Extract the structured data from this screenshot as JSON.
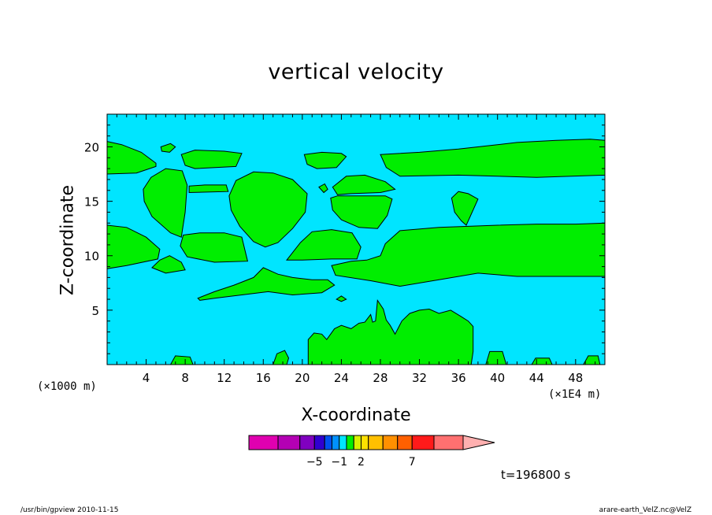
{
  "colors": {
    "background_field": "#00e5ff",
    "positive_field": "#00ee00",
    "contour": "#000000"
  },
  "chart_data": {
    "type": "heatmap",
    "title": "vertical velocity",
    "xlabel": "X-coordinate",
    "ylabel": "Z-coordinate",
    "x_unit_left": "(×1000 m)",
    "x_unit_right": "(×1E4 m)",
    "xlim": [
      0,
      51
    ],
    "ylim": [
      0,
      23
    ],
    "x_ticks": [
      4,
      8,
      12,
      16,
      20,
      24,
      28,
      32,
      36,
      40,
      44,
      48
    ],
    "y_ticks": [
      5,
      10,
      15,
      20
    ],
    "colorbar": {
      "levels": [
        -10,
        -8,
        -6,
        -5,
        -3,
        -2,
        -1,
        0,
        1,
        2,
        3,
        4,
        5,
        7,
        10,
        15,
        20
      ],
      "colors": [
        "#e000b0",
        "#b400b4",
        "#8000c0",
        "#3000d0",
        "#0050f0",
        "#0090ff",
        "#00e5ff",
        "#00ee00",
        "#d8f000",
        "#ffe000",
        "#ffc000",
        "#ff9000",
        "#ff6000",
        "#ff1a1a",
        "#ff7070",
        "#ffb0b0"
      ],
      "labels": [
        {
          "value": -5,
          "text": "−5"
        },
        {
          "value": -1,
          "text": "−1"
        },
        {
          "value": 2,
          "text": "2"
        },
        {
          "value": 7,
          "text": "7"
        }
      ]
    },
    "time_label": "t=196800 s",
    "regions": [
      {
        "name": "upper-band-left",
        "pts": [
          [
            0,
            20.5
          ],
          [
            1.5,
            20.2
          ],
          [
            3.5,
            19.5
          ],
          [
            5,
            18.5
          ],
          [
            5,
            18.2
          ],
          [
            3,
            17.6
          ],
          [
            0,
            17.5
          ]
        ]
      },
      {
        "name": "bubble-x6-z20",
        "pts": [
          [
            5.5,
            20
          ],
          [
            6.5,
            20.3
          ],
          [
            7,
            20
          ],
          [
            6.4,
            19.5
          ],
          [
            5.6,
            19.6
          ]
        ]
      },
      {
        "name": "upper-band-x8-14",
        "pts": [
          [
            7.6,
            19.3
          ],
          [
            9,
            19.7
          ],
          [
            12,
            19.6
          ],
          [
            13.8,
            19.4
          ],
          [
            13.2,
            18.2
          ],
          [
            9,
            18.0
          ],
          [
            8,
            18.3
          ]
        ]
      },
      {
        "name": "upper-band-x20-24",
        "pts": [
          [
            20.2,
            19.3
          ],
          [
            22,
            19.5
          ],
          [
            24,
            19.4
          ],
          [
            24.5,
            19.1
          ],
          [
            23.5,
            18.1
          ],
          [
            21.5,
            18.0
          ],
          [
            20.5,
            18.4
          ]
        ]
      },
      {
        "name": "upper-band-right",
        "pts": [
          [
            28,
            19.3
          ],
          [
            32,
            19.5
          ],
          [
            36,
            19.8
          ],
          [
            38,
            20.0
          ],
          [
            42,
            20.4
          ],
          [
            46,
            20.6
          ],
          [
            49.5,
            20.7
          ],
          [
            51,
            20.6
          ],
          [
            51,
            17.4
          ],
          [
            44,
            17.2
          ],
          [
            36,
            17.4
          ],
          [
            30,
            17.3
          ],
          [
            28.6,
            18.1
          ]
        ]
      },
      {
        "name": "cell-x5-upper",
        "pts": [
          [
            3.7,
            16.1
          ],
          [
            4.5,
            17.2
          ],
          [
            6,
            18
          ],
          [
            7.7,
            17.8
          ],
          [
            8.2,
            16.5
          ],
          [
            8,
            14
          ],
          [
            7.6,
            11.7
          ],
          [
            6.5,
            12.1
          ],
          [
            4.6,
            13.6
          ],
          [
            3.8,
            15
          ]
        ]
      },
      {
        "name": "bridge-x10-z16",
        "pts": [
          [
            8.4,
            16.4
          ],
          [
            10,
            16.5
          ],
          [
            12.2,
            16.5
          ],
          [
            12.4,
            15.9
          ],
          [
            8.4,
            15.8
          ]
        ]
      },
      {
        "name": "cell-x16-z15",
        "pts": [
          [
            12.5,
            15.5
          ],
          [
            13.2,
            16.9
          ],
          [
            15,
            17.7
          ],
          [
            17,
            17.6
          ],
          [
            19,
            17
          ],
          [
            20.5,
            15.7
          ],
          [
            20.3,
            14
          ],
          [
            19,
            12.5
          ],
          [
            17.5,
            11.2
          ],
          [
            16.2,
            10.8
          ],
          [
            15,
            11.3
          ],
          [
            13.6,
            12.7
          ],
          [
            12.7,
            14.2
          ]
        ]
      },
      {
        "name": "blob-x22-z16",
        "pts": [
          [
            21.7,
            16.3
          ],
          [
            22.3,
            16.6
          ],
          [
            22.6,
            16.1
          ],
          [
            22.2,
            15.8
          ]
        ]
      },
      {
        "name": "cell-x26-upper-cap",
        "pts": [
          [
            23.1,
            16.3
          ],
          [
            24.5,
            17.3
          ],
          [
            26.4,
            17.4
          ],
          [
            28.5,
            16.8
          ],
          [
            29.5,
            16.1
          ],
          [
            28,
            15.8
          ],
          [
            25,
            15.7
          ],
          [
            23.6,
            15.6
          ]
        ]
      },
      {
        "name": "cell-x26-lower",
        "pts": [
          [
            22.9,
            15.3
          ],
          [
            23.6,
            15.5
          ],
          [
            28.5,
            15.5
          ],
          [
            29.2,
            15.2
          ],
          [
            28.7,
            13.7
          ],
          [
            27.7,
            12.5
          ],
          [
            25.8,
            12.6
          ],
          [
            24,
            13.3
          ],
          [
            23.1,
            14.2
          ]
        ]
      },
      {
        "name": "cell-x37-z15",
        "pts": [
          [
            35.3,
            15.3
          ],
          [
            36,
            15.9
          ],
          [
            37,
            15.7
          ],
          [
            38,
            15.2
          ],
          [
            37.5,
            14.2
          ],
          [
            36.8,
            12.8
          ],
          [
            36.3,
            13.2
          ],
          [
            35.6,
            14
          ]
        ]
      },
      {
        "name": "lower-band-left",
        "pts": [
          [
            0,
            12.8
          ],
          [
            2,
            12.6
          ],
          [
            4,
            11.7
          ],
          [
            5.4,
            10.6
          ],
          [
            5.2,
            9.7
          ],
          [
            2,
            9.1
          ],
          [
            0,
            8.8
          ]
        ]
      },
      {
        "name": "blob-x7-z9",
        "pts": [
          [
            4.6,
            8.9
          ],
          [
            5.4,
            9.6
          ],
          [
            6.4,
            10
          ],
          [
            7.6,
            9.4
          ],
          [
            8,
            8.7
          ],
          [
            6,
            8.4
          ]
        ]
      },
      {
        "name": "block-x10-z11",
        "pts": [
          [
            7.8,
            11.9
          ],
          [
            9.5,
            12.1
          ],
          [
            12,
            12.1
          ],
          [
            13.8,
            11.7
          ],
          [
            14.4,
            9.5
          ],
          [
            11,
            9.4
          ],
          [
            8.2,
            9.9
          ],
          [
            7.5,
            10.9
          ]
        ]
      },
      {
        "name": "block-x24-z11",
        "pts": [
          [
            18.4,
            9.6
          ],
          [
            19.8,
            11.2
          ],
          [
            21,
            12.2
          ],
          [
            23,
            12.4
          ],
          [
            25.1,
            12.1
          ],
          [
            26,
            10.8
          ],
          [
            25.6,
            9.7
          ],
          [
            23,
            9.7
          ],
          [
            20,
            9.6
          ]
        ]
      },
      {
        "name": "lower-band-right",
        "pts": [
          [
            28.5,
            11.1
          ],
          [
            30,
            12.3
          ],
          [
            34,
            12.6
          ],
          [
            37,
            12.7
          ],
          [
            40,
            12.8
          ],
          [
            44,
            12.9
          ],
          [
            48,
            12.9
          ],
          [
            51,
            13
          ],
          [
            51,
            8.1
          ],
          [
            46,
            8.1
          ],
          [
            42,
            8.1
          ],
          [
            38,
            8.4
          ],
          [
            34,
            7.8
          ],
          [
            30,
            7.2
          ],
          [
            27,
            7.7
          ],
          [
            23.4,
            8.2
          ],
          [
            23,
            9.1
          ],
          [
            25,
            9.5
          ],
          [
            26.6,
            9.6
          ],
          [
            28,
            10
          ]
        ]
      },
      {
        "name": "tongue-x15-z7",
        "pts": [
          [
            9.3,
            6.1
          ],
          [
            11,
            6.7
          ],
          [
            13,
            7.3
          ],
          [
            15,
            8
          ],
          [
            16,
            8.9
          ],
          [
            17.5,
            8.3
          ],
          [
            19,
            8
          ],
          [
            21,
            7.8
          ],
          [
            22.6,
            7.8
          ],
          [
            23.3,
            7.3
          ],
          [
            22,
            6.6
          ],
          [
            19,
            6.4
          ],
          [
            16.5,
            6.7
          ],
          [
            13.8,
            6.4
          ],
          [
            11,
            6.1
          ],
          [
            9.5,
            5.9
          ]
        ]
      },
      {
        "name": "blob-x24-z6",
        "pts": [
          [
            23.5,
            6
          ],
          [
            24,
            6.3
          ],
          [
            24.5,
            6
          ],
          [
            24,
            5.8
          ]
        ]
      },
      {
        "name": "convective-tower",
        "pts": [
          [
            20.6,
            0
          ],
          [
            20.6,
            2.3
          ],
          [
            21.2,
            2.9
          ],
          [
            22,
            2.8
          ],
          [
            22.5,
            2.3
          ],
          [
            23.3,
            3.3
          ],
          [
            24,
            3.6
          ],
          [
            25,
            3.3
          ],
          [
            25.8,
            3.8
          ],
          [
            26.4,
            3.9
          ],
          [
            27,
            4.6
          ],
          [
            27.2,
            3.9
          ],
          [
            27.5,
            4
          ],
          [
            27.7,
            5.9
          ],
          [
            28.3,
            5.1
          ],
          [
            28.6,
            4.1
          ],
          [
            29,
            3.6
          ],
          [
            29.5,
            2.8
          ],
          [
            30.2,
            4
          ],
          [
            31,
            4.7
          ],
          [
            32,
            5
          ],
          [
            33,
            5.1
          ],
          [
            34,
            4.7
          ],
          [
            35.2,
            5
          ],
          [
            36.3,
            4.4
          ],
          [
            37,
            4
          ],
          [
            37.5,
            3.5
          ],
          [
            37.5,
            1.2
          ],
          [
            37.3,
            0
          ]
        ]
      },
      {
        "name": "blob-x18-z1",
        "pts": [
          [
            17,
            0
          ],
          [
            17.4,
            1
          ],
          [
            18.2,
            1.3
          ],
          [
            18.6,
            0.6
          ],
          [
            18.4,
            0
          ]
        ]
      },
      {
        "name": "blob-x7-z0",
        "pts": [
          [
            6.5,
            0
          ],
          [
            7,
            0.8
          ],
          [
            8.5,
            0.7
          ],
          [
            8.8,
            0
          ]
        ]
      },
      {
        "name": "blob-x39-z1",
        "pts": [
          [
            38.8,
            0
          ],
          [
            39.2,
            1.2
          ],
          [
            40.5,
            1.2
          ],
          [
            40.9,
            0
          ]
        ]
      },
      {
        "name": "blob-x44-z0",
        "pts": [
          [
            43.5,
            0
          ],
          [
            43.9,
            0.6
          ],
          [
            45.3,
            0.6
          ],
          [
            45.6,
            0
          ]
        ]
      },
      {
        "name": "blob-x49-z0",
        "pts": [
          [
            48.8,
            0
          ],
          [
            49.3,
            0.8
          ],
          [
            50.3,
            0.8
          ],
          [
            50.5,
            0
          ]
        ]
      }
    ]
  },
  "footer": {
    "left": "/usr/bin/gpview   2010-11-15",
    "right": "arare-earth_VelZ.nc@VelZ"
  }
}
